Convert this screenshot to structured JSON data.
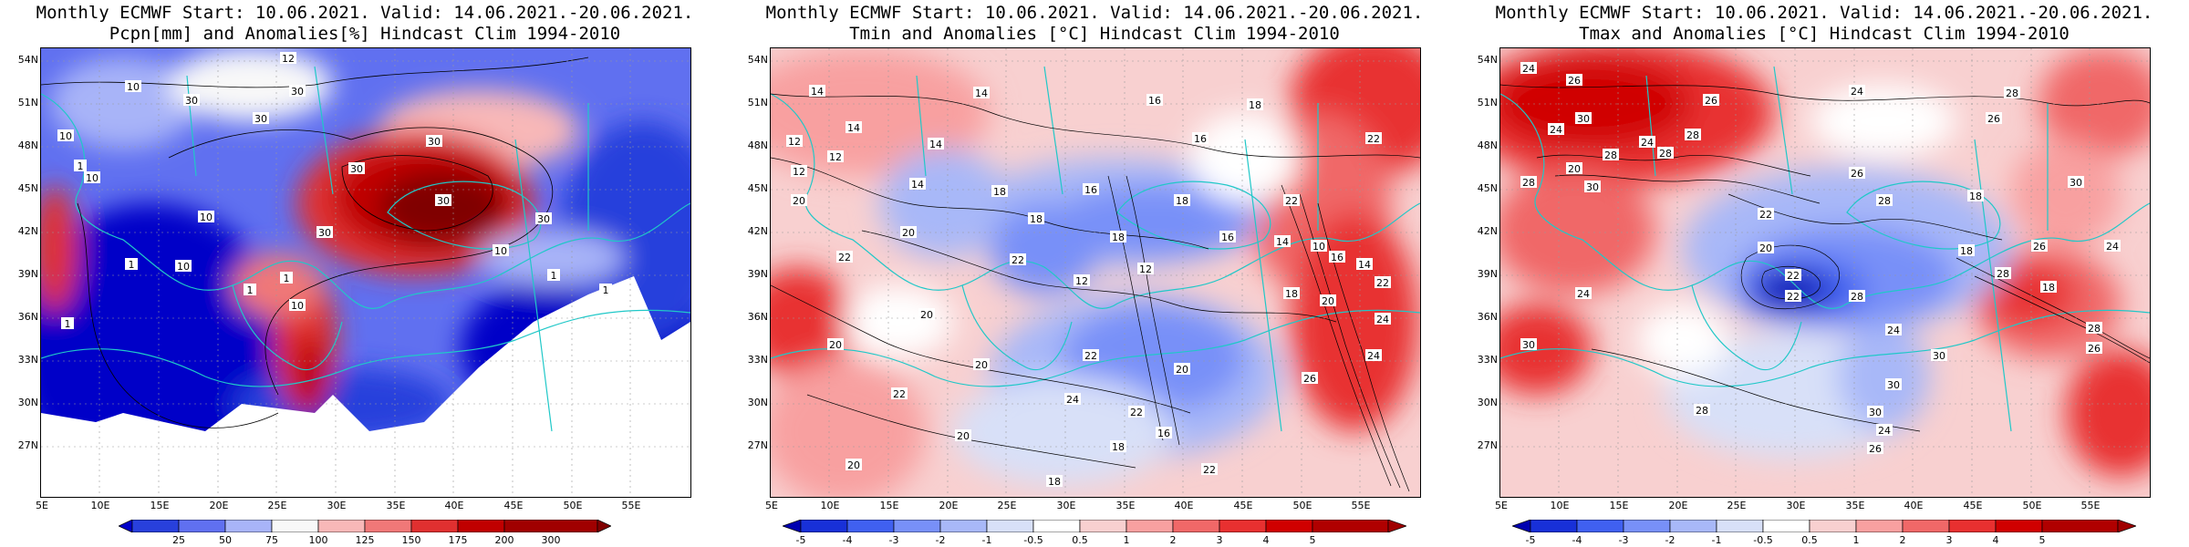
{
  "panels": [
    {
      "title_line1": "Monthly ECMWF Start: 10.06.2021. Valid: 14.06.2021.-20.06.2021.",
      "title_line2": "Pcpn[mm] and Anomalies[%] Hindcast Clim 1994-2010",
      "lat_ticks": [
        "54N",
        "51N",
        "48N",
        "45N",
        "42N",
        "39N",
        "36N",
        "33N",
        "30N",
        "27N"
      ],
      "lon_ticks": [
        "5E",
        "10E",
        "15E",
        "20E",
        "25E",
        "30E",
        "35E",
        "40E",
        "45E",
        "50E",
        "55E"
      ],
      "colorbar_labels": [
        "25",
        "50",
        "75",
        "100",
        "125",
        "150",
        "175",
        "200",
        "300"
      ],
      "contour_labels": [
        "12",
        "10",
        "30",
        "30",
        "30",
        "10",
        "1",
        "10",
        "30",
        "30",
        "30",
        "10",
        "30",
        "30",
        "10",
        "1",
        "1",
        "10",
        "1",
        "1",
        "10",
        "1",
        "1"
      ]
    },
    {
      "title_line1": "Monthly ECMWF Start: 10.06.2021. Valid: 14.06.2021.-20.06.2021.",
      "title_line2": "Tmin and Anomalies [°C] Hindcast Clim 1994-2010",
      "lat_ticks": [
        "54N",
        "51N",
        "48N",
        "45N",
        "42N",
        "39N",
        "36N",
        "33N",
        "30N",
        "27N"
      ],
      "lon_ticks": [
        "5E",
        "10E",
        "15E",
        "20E",
        "25E",
        "30E",
        "35E",
        "40E",
        "45E",
        "50E",
        "55E"
      ],
      "colorbar_labels": [
        "-5",
        "-4",
        "-3",
        "-2",
        "-1",
        "-0.5",
        "0.5",
        "1",
        "2",
        "3",
        "4",
        "5"
      ],
      "contour_labels": [
        "14",
        "14",
        "16",
        "18",
        "14",
        "12",
        "14",
        "12",
        "16",
        "12",
        "18",
        "14",
        "16",
        "18",
        "22",
        "20",
        "22",
        "18",
        "20",
        "22",
        "18",
        "16",
        "14",
        "22",
        "10",
        "16",
        "14",
        "12",
        "12",
        "20",
        "22",
        "18",
        "20",
        "20",
        "24",
        "22",
        "20",
        "20",
        "24",
        "26",
        "22",
        "24",
        "22",
        "16",
        "20",
        "18",
        "20",
        "22",
        "18"
      ]
    },
    {
      "title_line1": "Monthly ECMWF Start: 10.06.2021. Valid: 14.06.2021.-20.06.2021.",
      "title_line2": "Tmax and Anomalies [°C] Hindcast Clim 1994-2010",
      "lat_ticks": [
        "54N",
        "51N",
        "48N",
        "45N",
        "42N",
        "39N",
        "36N",
        "33N",
        "30N",
        "27N"
      ],
      "lon_ticks": [
        "5E",
        "10E",
        "15E",
        "20E",
        "25E",
        "30E",
        "35E",
        "40E",
        "45E",
        "50E",
        "55E"
      ],
      "colorbar_labels": [
        "-5",
        "-4",
        "-3",
        "-2",
        "-1",
        "-0.5",
        "0.5",
        "1",
        "2",
        "3",
        "4",
        "5"
      ],
      "contour_labels": [
        "24",
        "26",
        "26",
        "24",
        "28",
        "30",
        "24",
        "28",
        "24",
        "26",
        "28",
        "20",
        "28",
        "28",
        "30",
        "26",
        "22",
        "28",
        "18",
        "30",
        "20",
        "18",
        "22",
        "26",
        "24",
        "28",
        "22",
        "24",
        "28",
        "18",
        "30",
        "24",
        "30",
        "28",
        "26",
        "28",
        "30",
        "24",
        "26",
        "30"
      ]
    }
  ],
  "colors": {
    "pcpn_scale": [
      "#0000c8",
      "#2840dc",
      "#6070f0",
      "#a8b4f8",
      "#f8f8f8",
      "#f8b8b8",
      "#f07878",
      "#e03030",
      "#c00000",
      "#800000"
    ],
    "anom_scale": [
      "#0000b0",
      "#1830d8",
      "#4060f0",
      "#7890f8",
      "#a8b8f8",
      "#d8e0f8",
      "#ffffff",
      "#f8d0d0",
      "#f8a0a0",
      "#f06868",
      "#e83030",
      "#d00000",
      "#a00000"
    ],
    "coast": "#20c8c8",
    "contour": "#000000"
  }
}
